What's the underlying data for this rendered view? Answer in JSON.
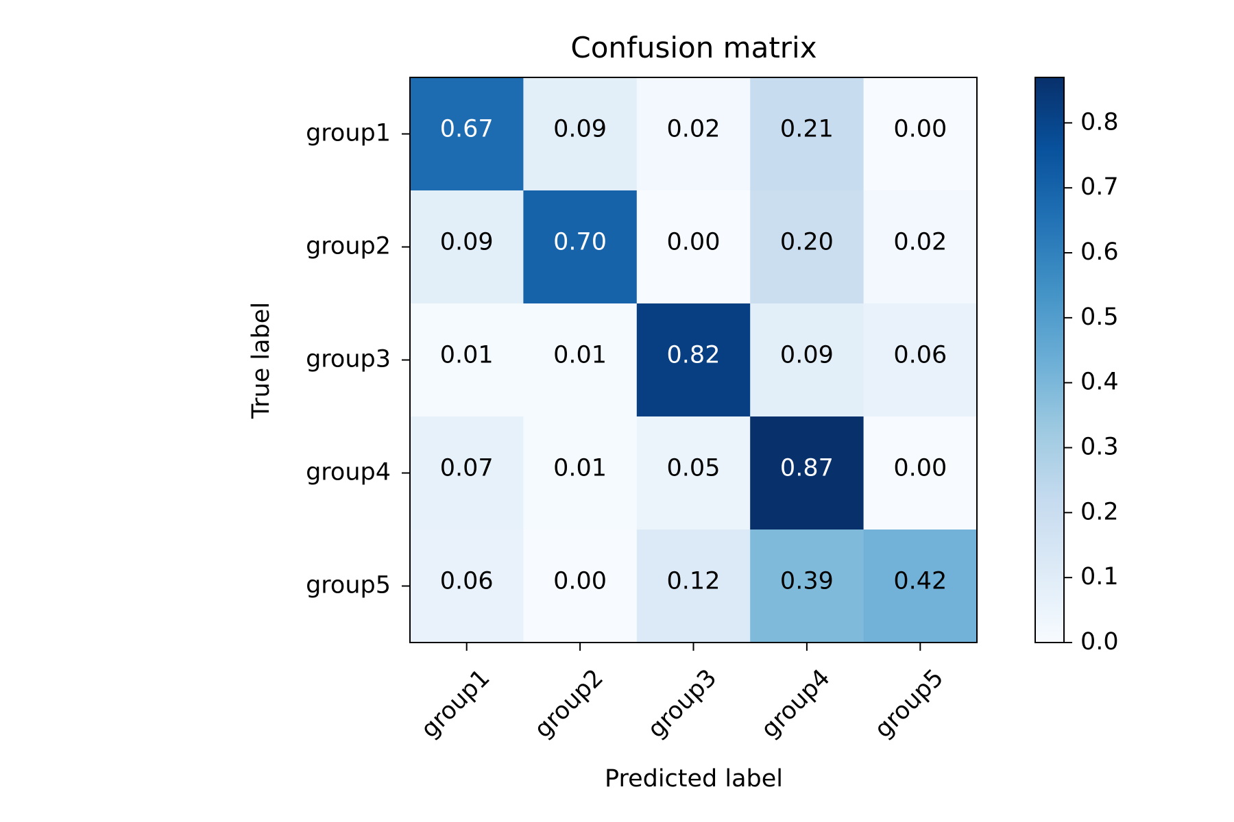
{
  "chart_data": {
    "type": "heatmap",
    "title": "Confusion matrix",
    "xlabel": "Predicted label",
    "ylabel": "True label",
    "x_categories": [
      "group1",
      "group2",
      "group3",
      "group4",
      "group5"
    ],
    "y_categories": [
      "group1",
      "group2",
      "group3",
      "group4",
      "group5"
    ],
    "values": [
      [
        0.67,
        0.09,
        0.02,
        0.21,
        0.0
      ],
      [
        0.09,
        0.7,
        0.0,
        0.2,
        0.02
      ],
      [
        0.01,
        0.01,
        0.82,
        0.09,
        0.06
      ],
      [
        0.07,
        0.01,
        0.05,
        0.87,
        0.0
      ],
      [
        0.06,
        0.0,
        0.12,
        0.39,
        0.42
      ]
    ],
    "value_format": "0.00",
    "colormap": "Blues",
    "colorbar": {
      "range": [
        0.0,
        0.87
      ],
      "ticks": [
        0.0,
        0.1,
        0.2,
        0.3,
        0.4,
        0.5,
        0.6,
        0.7,
        0.8
      ],
      "tick_labels": [
        "0.0",
        "0.1",
        "0.2",
        "0.3",
        "0.4",
        "0.5",
        "0.6",
        "0.7",
        "0.8"
      ]
    },
    "colors": {
      "light_text": "#ffffff",
      "dark_text": "#000000",
      "frame": "#000000"
    }
  }
}
